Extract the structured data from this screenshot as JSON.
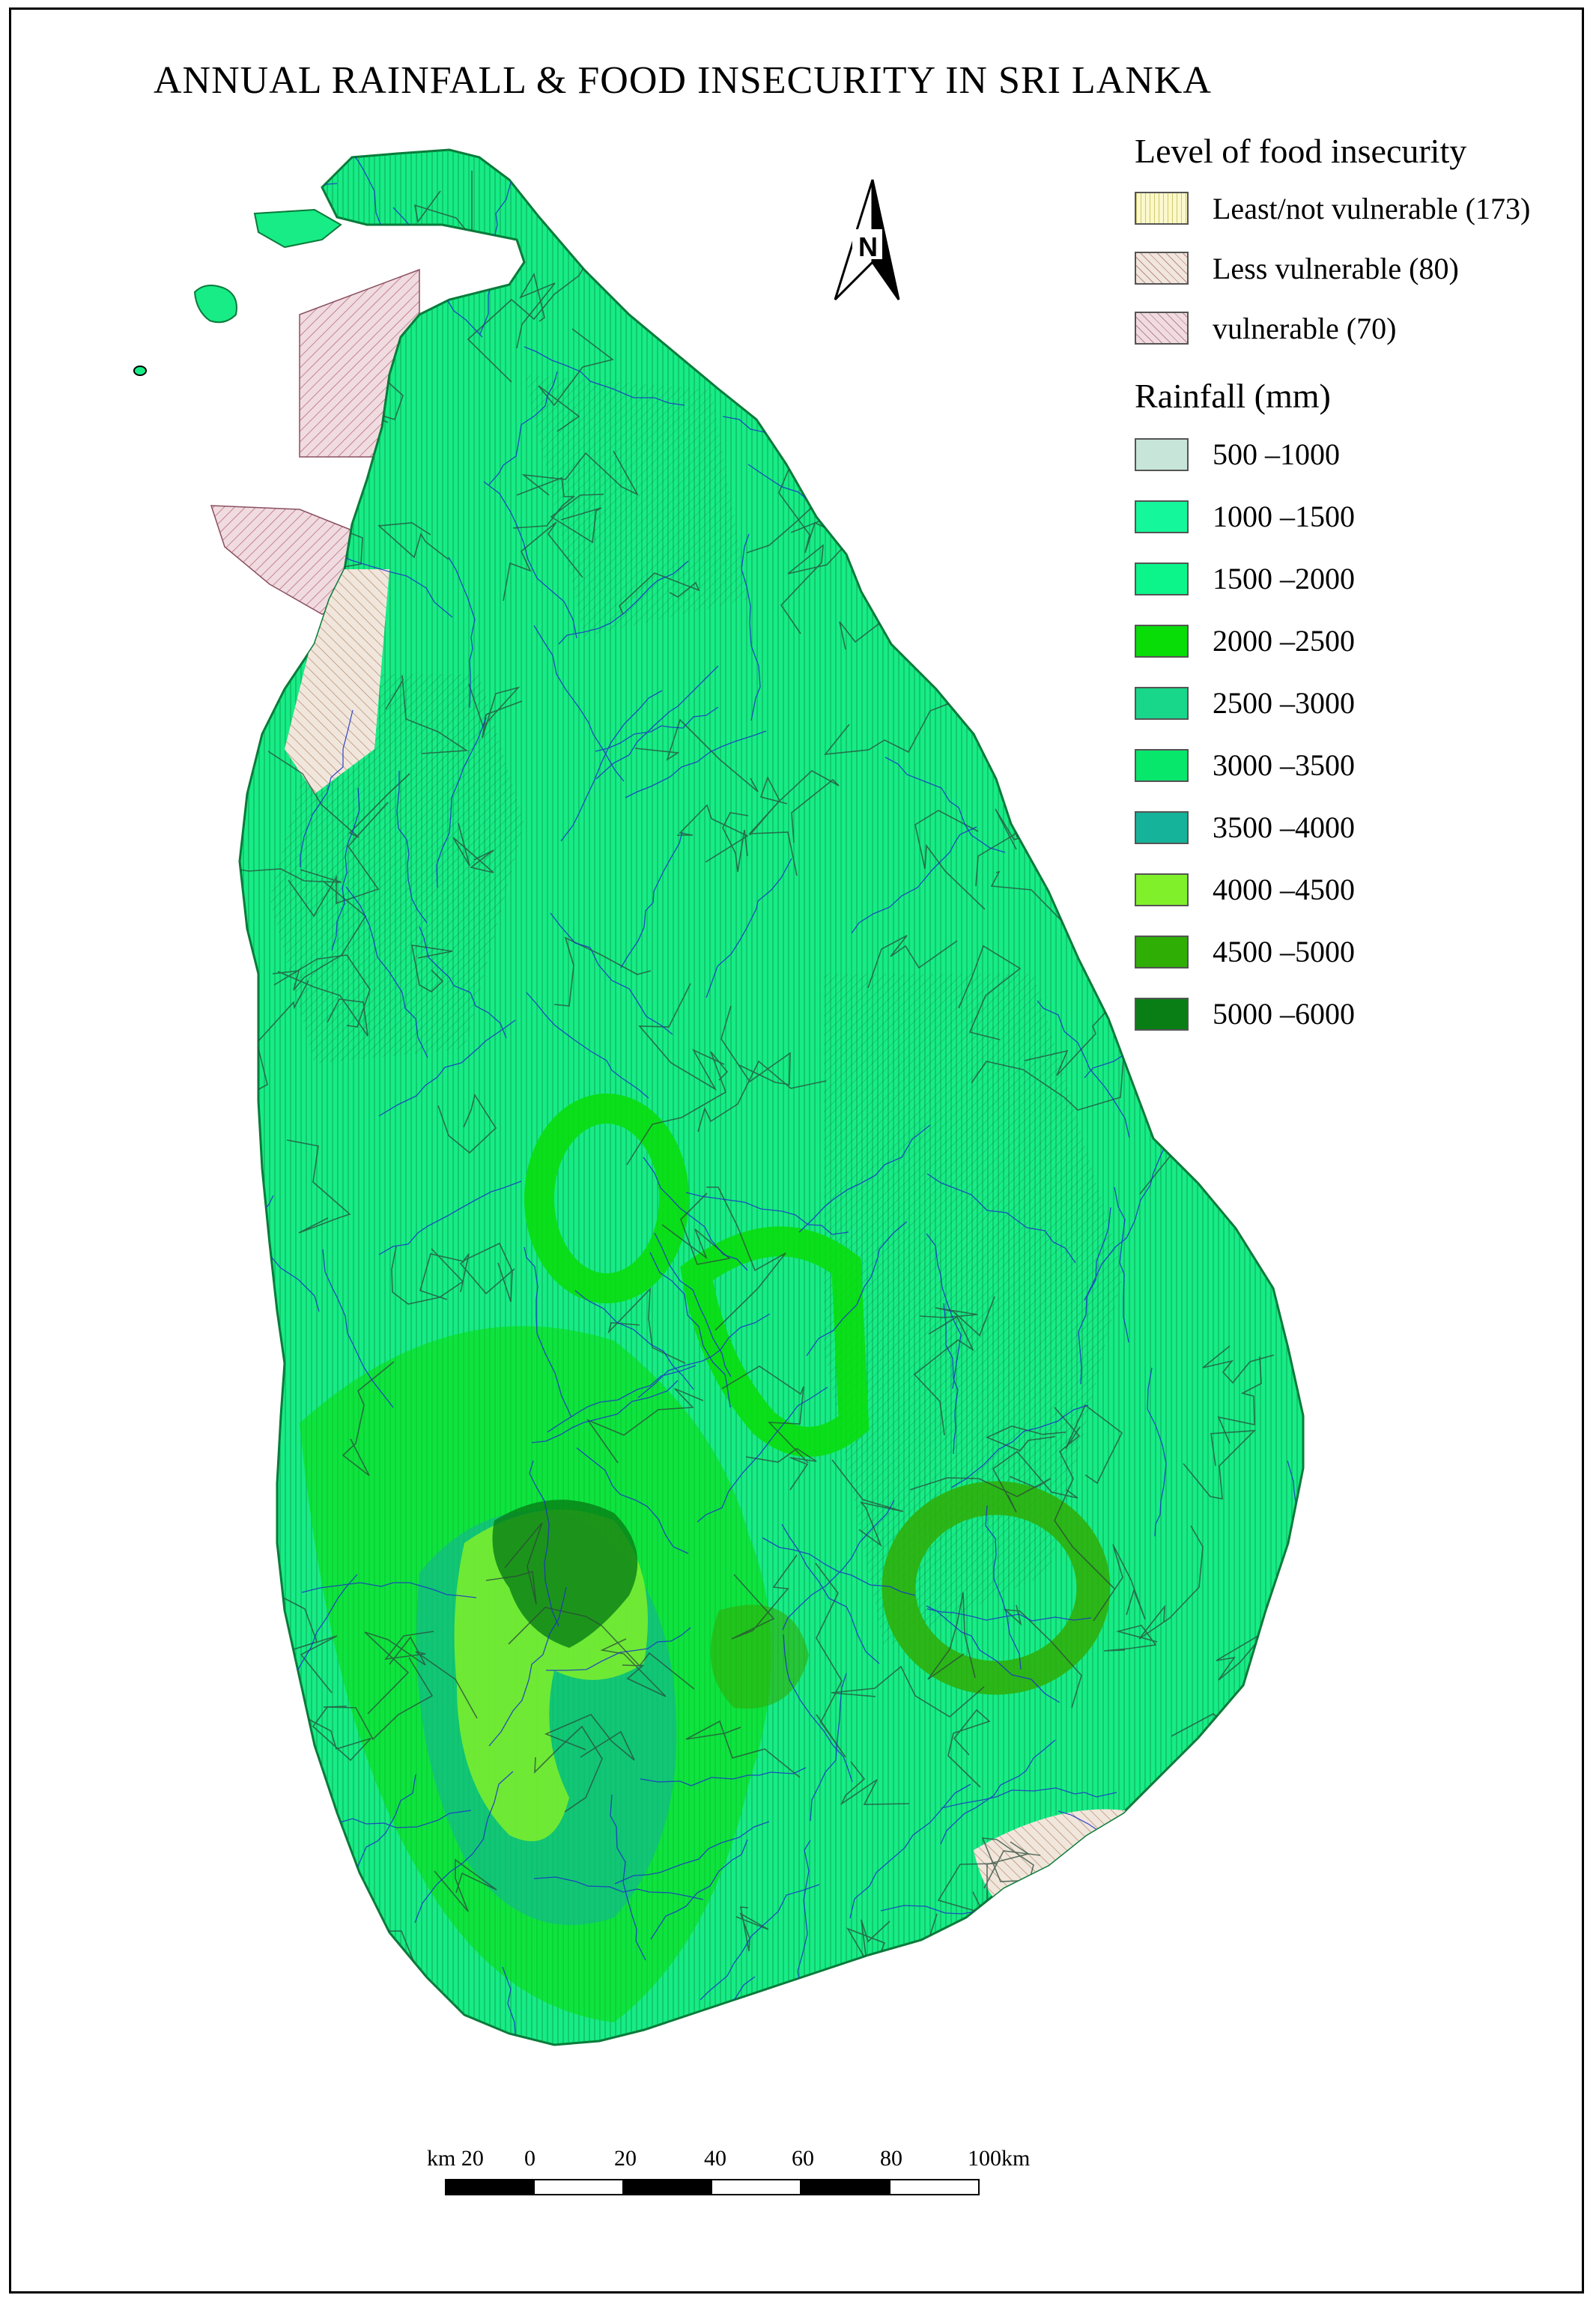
{
  "title": "ANNUAL RAINFALL & FOOD INSECURITY IN SRI LANKA",
  "north_arrow": {
    "icon": "north-arrow-icon",
    "letter": "N"
  },
  "legend": {
    "food_heading": "Level of food insecurity",
    "food_items": [
      {
        "label": "Least/not vulnerable (173)",
        "color": "#fbf8cc",
        "pattern": "vertical-hatch"
      },
      {
        "label": "Less vulnerable (80)",
        "color": "#f1e6dc",
        "pattern": "diagonal-hatch"
      },
      {
        "label": "vulnerable (70)",
        "color": "#f0dbe0",
        "pattern": "diagonal-hatch"
      }
    ],
    "rain_heading": "Rainfall (mm)",
    "rain_items": [
      {
        "label": " 500 –1000",
        "color": "#c7e5d8"
      },
      {
        "label": "1000 –1500",
        "color": "#15f79b"
      },
      {
        "label": "1500 –2000",
        "color": "#0bf58a"
      },
      {
        "label": "2000 –2500",
        "color": "#08dd08"
      },
      {
        "label": "2500 –3000",
        "color": "#18d78a"
      },
      {
        "label": "3000 –3500",
        "color": "#07e76c"
      },
      {
        "label": "3500 –4000",
        "color": "#14b39a"
      },
      {
        "label": "4000 –4500",
        "color": "#7ff02a"
      },
      {
        "label": "4500 –5000",
        "color": "#2fae06"
      },
      {
        "label": "5000 –6000",
        "color": "#087e15"
      }
    ]
  },
  "scale_bar": {
    "labels": [
      "km 20",
      "0",
      "20",
      "40",
      "60",
      "80",
      "100km"
    ]
  },
  "colors": {
    "land_base": "#17ec86",
    "river": "#1e32c8",
    "boundary": "#2b4a3a",
    "coast": "#0a7a3a"
  }
}
